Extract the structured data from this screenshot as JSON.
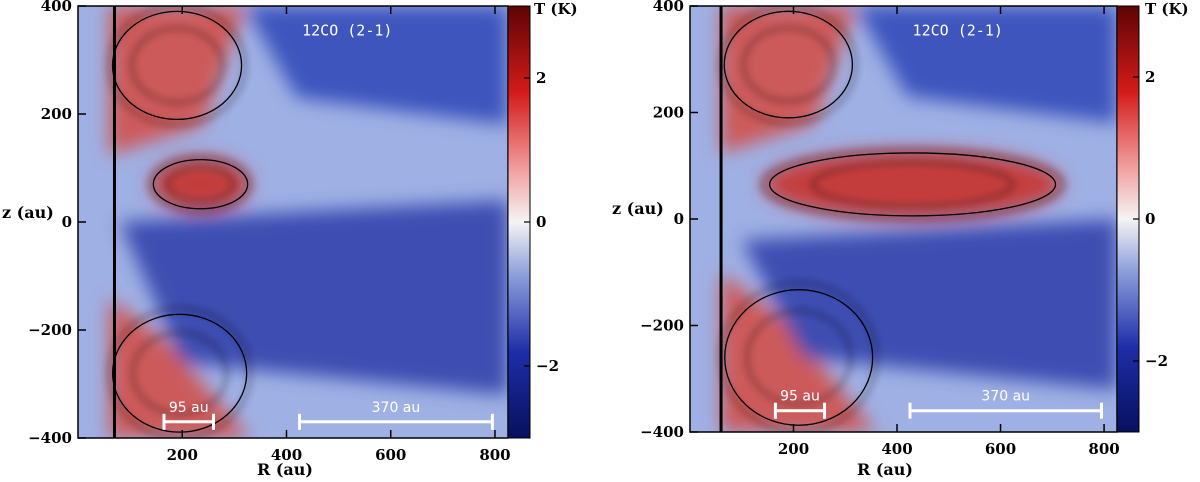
{
  "colors": {
    "hot": "#d41a1a",
    "neutral": "#f4f4f4",
    "cold": "#1e2ea8",
    "contour": "#000000",
    "scalebar": "#ffffff"
  },
  "chart_data": [
    {
      "type": "heatmap",
      "annotation": "12CO (2-1)",
      "xlabel": "R (au)",
      "ylabel": "z (au)",
      "xlim": [
        0,
        825
      ],
      "ylim": [
        -400,
        400
      ],
      "xticks": [
        200,
        400,
        600,
        800
      ],
      "yticks": [
        -400,
        -200,
        0,
        200,
        400
      ],
      "colorbar": {
        "label": "T (K)",
        "range": [
          -3,
          3
        ],
        "ticks": [
          -2,
          0,
          2
        ]
      },
      "vertical_line_r": 70,
      "scale_bars": [
        {
          "label": "95 au",
          "r_start": 165,
          "r_end": 260,
          "z": -370
        },
        {
          "label": "370 au",
          "r_start": 425,
          "r_end": 795,
          "z": -370
        }
      ],
      "features": [
        {
          "label": "upper_warm_layer",
          "r": [
            60,
            320
          ],
          "z": [
            180,
            400
          ],
          "t": 2.0
        },
        {
          "label": "midplane_warm_layer",
          "r": [
            140,
            330
          ],
          "z": [
            20,
            120
          ],
          "t": 2.4
        },
        {
          "label": "lower_warm_layer",
          "r": [
            60,
            330
          ],
          "z": [
            -400,
            -160
          ],
          "t": 2.0
        },
        {
          "label": "cold_cone",
          "r": [
            80,
            825
          ],
          "z": [
            -320,
            0
          ],
          "t": -2.5
        }
      ]
    },
    {
      "type": "heatmap",
      "annotation": "12CO (2-1)",
      "xlabel": "R (au)",
      "ylabel": "z (au)",
      "xlim": [
        0,
        825
      ],
      "ylim": [
        -400,
        400
      ],
      "xticks": [
        200,
        400,
        600,
        800
      ],
      "yticks": [
        -400,
        -200,
        0,
        200,
        400
      ],
      "colorbar": {
        "label": "T (K)",
        "range": [
          -3,
          3
        ],
        "ticks": [
          -2,
          0,
          2
        ]
      },
      "vertical_line_r": 60,
      "scale_bars": [
        {
          "label": "95 au",
          "r_start": 165,
          "r_end": 260,
          "z": -360
        },
        {
          "label": "370 au",
          "r_start": 425,
          "r_end": 795,
          "z": -360
        }
      ],
      "features": [
        {
          "label": "upper_warm_layer",
          "r": [
            60,
            320
          ],
          "z": [
            180,
            400
          ],
          "t": 2.0
        },
        {
          "label": "midplane_warm_layer",
          "r": [
            140,
            720
          ],
          "z": [
            0,
            130
          ],
          "t": 2.4
        },
        {
          "label": "lower_warm_layer",
          "r": [
            60,
            360
          ],
          "z": [
            -400,
            -120
          ],
          "t": 2.0
        },
        {
          "label": "cold_cone",
          "r": [
            100,
            825
          ],
          "z": [
            -320,
            -40
          ],
          "t": -2.5
        }
      ]
    }
  ]
}
